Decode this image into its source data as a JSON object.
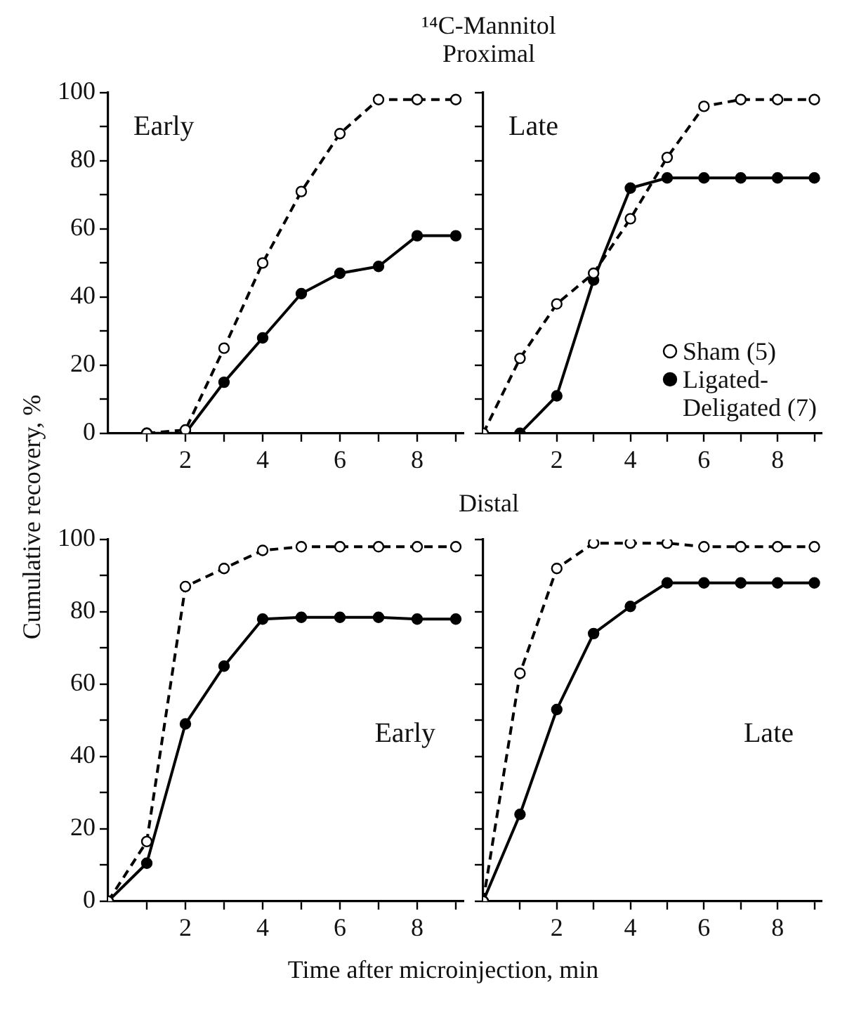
{
  "chart_data": [
    {
      "type": "line",
      "title": "Early",
      "annotations": [
        "¹⁴C-Mannitol",
        "Proximal"
      ],
      "ylabel": "Cumulative recovery, %",
      "x": [
        1,
        2,
        3,
        4,
        5,
        6,
        7,
        8,
        9
      ],
      "xlim": [
        0,
        9.2
      ],
      "xticks": [
        {
          "value": 1,
          "label": null
        },
        2,
        {
          "value": 3,
          "label": null
        },
        4,
        {
          "value": 5,
          "label": null
        },
        6,
        {
          "value": 7,
          "label": null
        },
        8,
        {
          "value": 9,
          "label": null
        }
      ],
      "ylim": [
        0,
        100
      ],
      "yticks": [
        0,
        {
          "value": 10,
          "label": null
        },
        20,
        {
          "value": 30,
          "label": null
        },
        40,
        {
          "value": 50,
          "label": null
        },
        60,
        {
          "value": 70,
          "label": null
        },
        80,
        {
          "value": 90,
          "label": null
        },
        100
      ],
      "marker": "circle",
      "grid": false,
      "legend": false,
      "series": [
        {
          "color": "#000000",
          "line_style": "dashed",
          "values": [
            0,
            1,
            25,
            50,
            71,
            88,
            98,
            98,
            98
          ]
        },
        {
          "color": "#000000",
          "line_style": "solid",
          "values": [
            0,
            0,
            15,
            28,
            41,
            47,
            49,
            58,
            58
          ]
        }
      ]
    },
    {
      "type": "line",
      "title": "Late",
      "x": [
        0,
        1,
        2,
        3,
        4,
        5,
        6,
        7,
        8,
        9
      ],
      "xlim": [
        0,
        9.2
      ],
      "xticks": [
        {
          "value": 1,
          "label": null
        },
        2,
        {
          "value": 3,
          "label": null
        },
        4,
        {
          "value": 5,
          "label": null
        },
        6,
        {
          "value": 7,
          "label": null
        },
        8,
        {
          "value": 9,
          "label": null
        }
      ],
      "ylim": [
        0,
        100
      ],
      "yticks": [
        0,
        10,
        20,
        30,
        40,
        50,
        60,
        70,
        80,
        90,
        100
      ],
      "tick_labels": "x",
      "marker": "circle",
      "grid": false,
      "legend": "bottom right",
      "series": [
        {
          "name": "Sham (5)",
          "color": "#000000",
          "line_style": "dashed",
          "values": [
            0,
            22,
            38,
            47,
            63,
            81,
            96,
            98,
            98,
            98
          ]
        },
        {
          "name": "Ligated-Deligated (7)",
          "color": "#000000",
          "line_style": "solid",
          "values": [
            null,
            0,
            11,
            45,
            72,
            75,
            75,
            75,
            75,
            75
          ]
        }
      ]
    },
    {
      "type": "line",
      "title": "Early",
      "annotations": [
        "Distal"
      ],
      "xlabel": "Time after microinjection, min",
      "x": [
        0,
        1,
        2,
        3,
        4,
        5,
        6,
        7,
        8,
        9
      ],
      "xlim": [
        0,
        9.2
      ],
      "xticks": [
        {
          "value": 1,
          "label": null
        },
        2,
        {
          "value": 3,
          "label": null
        },
        4,
        {
          "value": 5,
          "label": null
        },
        6,
        {
          "value": 7,
          "label": null
        },
        8,
        {
          "value": 9,
          "label": null
        }
      ],
      "ylim": [
        0,
        100
      ],
      "yticks": [
        0,
        {
          "value": 10,
          "label": null
        },
        20,
        {
          "value": 30,
          "label": null
        },
        40,
        {
          "value": 50,
          "label": null
        },
        60,
        {
          "value": 70,
          "label": null
        },
        80,
        {
          "value": 90,
          "label": null
        },
        100
      ],
      "marker": "circle",
      "grid": false,
      "legend": false,
      "series": [
        {
          "color": "#000000",
          "line_style": "dashed",
          "values": [
            0,
            16.5,
            87,
            92,
            97,
            98,
            98,
            98,
            98,
            98
          ]
        },
        {
          "color": "#000000",
          "line_style": "solid",
          "values": [
            0,
            10.5,
            49,
            65,
            78,
            78.5,
            78.5,
            78.5,
            78,
            78
          ]
        }
      ]
    },
    {
      "type": "line",
      "title": "Late",
      "x": [
        0,
        1,
        2,
        3,
        4,
        5,
        6,
        7,
        8,
        9
      ],
      "xlim": [
        0,
        9.2
      ],
      "xticks": [
        {
          "value": 1,
          "label": null
        },
        2,
        {
          "value": 3,
          "label": null
        },
        4,
        {
          "value": 5,
          "label": null
        },
        6,
        {
          "value": 7,
          "label": null
        },
        8,
        {
          "value": 9,
          "label": null
        }
      ],
      "ylim": [
        0,
        100
      ],
      "yticks": [
        0,
        10,
        20,
        30,
        40,
        50,
        60,
        70,
        80,
        90,
        100
      ],
      "tick_labels": "x",
      "marker": "circle",
      "grid": false,
      "legend": false,
      "series": [
        {
          "color": "#000000",
          "line_style": "dashed",
          "values": [
            0,
            63,
            92,
            99,
            99,
            99,
            98,
            98,
            98,
            98
          ]
        },
        {
          "color": "#000000",
          "line_style": "solid",
          "values": [
            0,
            24,
            53,
            74,
            81.5,
            88,
            88,
            88,
            88,
            88
          ]
        }
      ]
    }
  ]
}
